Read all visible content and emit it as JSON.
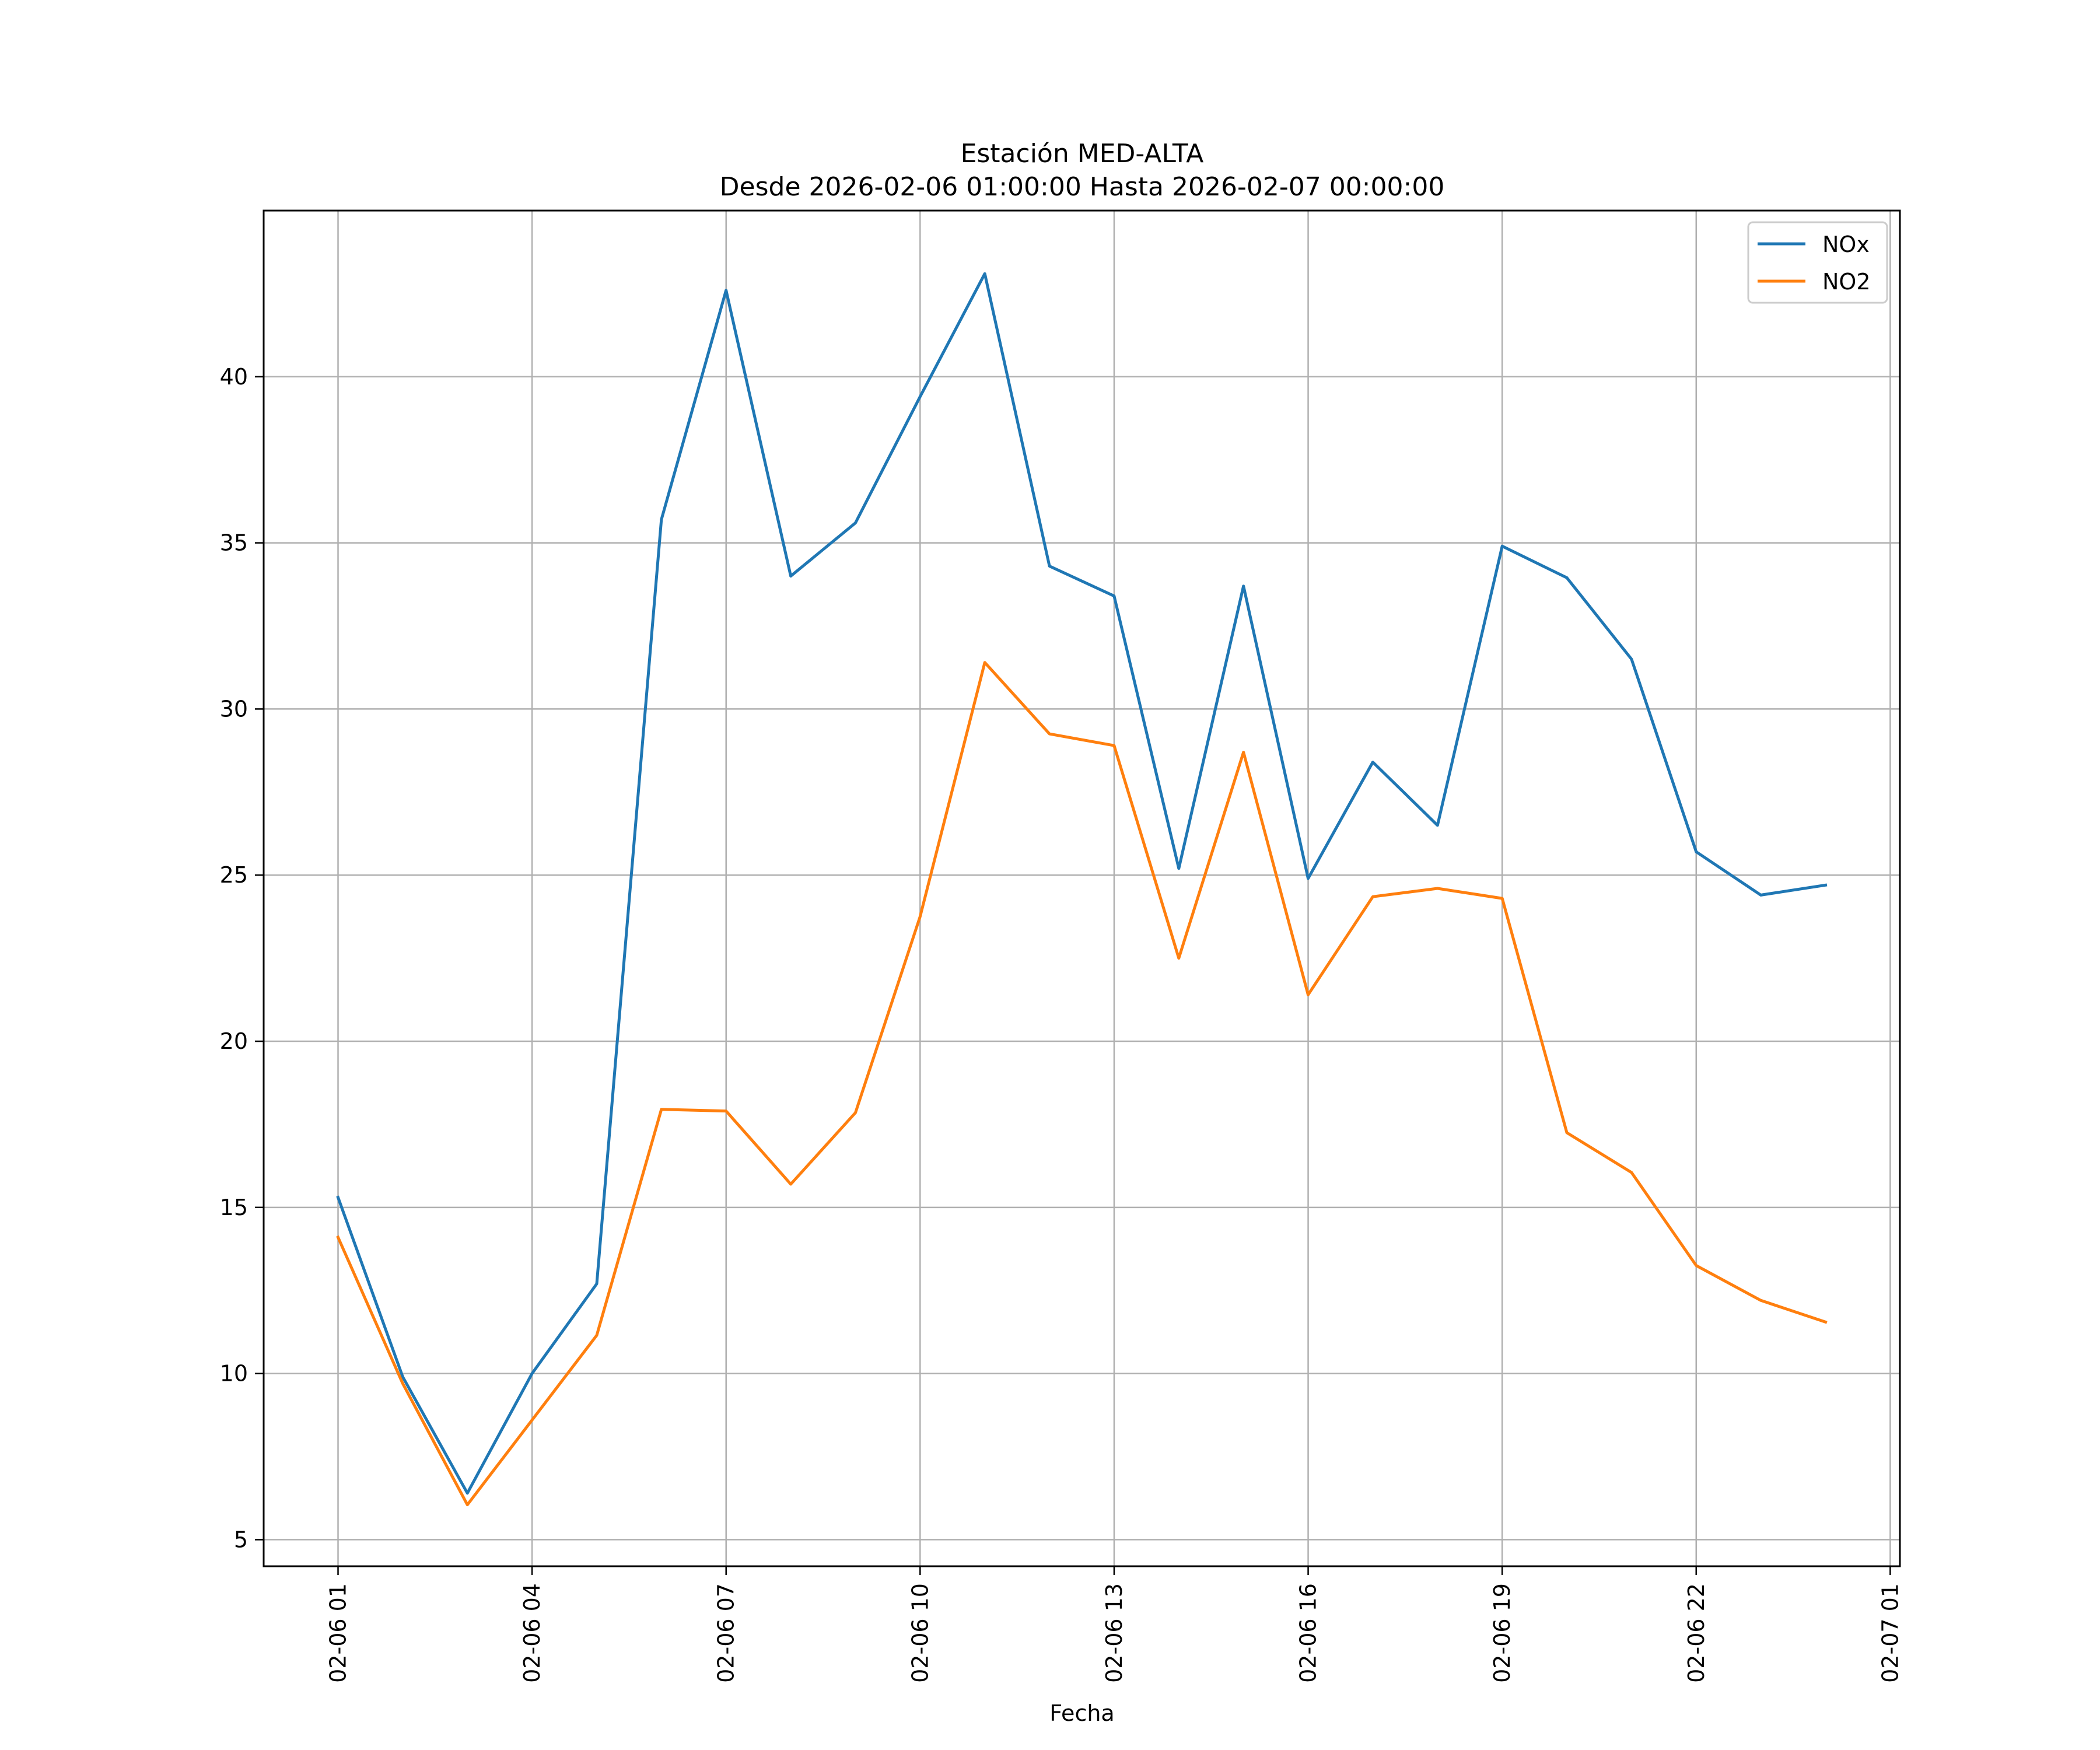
{
  "chart_data": {
    "type": "line",
    "title": "Estación MED-ALTA",
    "subtitle": "Desde 2026-02-06 01:00:00 Hasta 2026-02-07 00:00:00",
    "xlabel": "Fecha",
    "ylabel": "",
    "x": [
      1,
      2,
      3,
      4,
      5,
      6,
      7,
      8,
      9,
      10,
      11,
      12,
      13,
      14,
      15,
      16,
      17,
      18,
      19,
      20,
      21,
      22,
      23,
      24
    ],
    "xlim": [
      -0.15,
      25.15
    ],
    "ylim": [
      4.2,
      45
    ],
    "x_ticks": [
      {
        "value": 1,
        "label": "02-06 01"
      },
      {
        "value": 4,
        "label": "02-06 04"
      },
      {
        "value": 7,
        "label": "02-06 07"
      },
      {
        "value": 10,
        "label": "02-06 10"
      },
      {
        "value": 13,
        "label": "02-06 13"
      },
      {
        "value": 16,
        "label": "02-06 16"
      },
      {
        "value": 19,
        "label": "02-06 19"
      },
      {
        "value": 22,
        "label": "02-06 22"
      },
      {
        "value": 25,
        "label": "02-07 01"
      }
    ],
    "y_ticks": [
      {
        "value": 5,
        "label": "5"
      },
      {
        "value": 10,
        "label": "10"
      },
      {
        "value": 15,
        "label": "15"
      },
      {
        "value": 20,
        "label": "20"
      },
      {
        "value": 25,
        "label": "25"
      },
      {
        "value": 30,
        "label": "30"
      },
      {
        "value": 35,
        "label": "35"
      },
      {
        "value": 40,
        "label": "40"
      }
    ],
    "grid": true,
    "legend_position": "top-right",
    "series": [
      {
        "name": "NOx",
        "color": "#1f77b4",
        "values": [
          15.3,
          9.9,
          6.4,
          10.0,
          12.7,
          35.7,
          42.6,
          34.0,
          35.6,
          39.4,
          43.1,
          34.3,
          33.4,
          25.2,
          33.7,
          24.9,
          28.4,
          26.5,
          34.9,
          33.95,
          31.5,
          25.7,
          24.4,
          24.7
        ]
      },
      {
        "name": "NO2",
        "color": "#ff7f0e",
        "values": [
          14.1,
          9.7,
          6.05,
          8.6,
          11.15,
          17.95,
          17.9,
          15.7,
          17.85,
          23.75,
          31.4,
          29.25,
          28.9,
          22.5,
          28.7,
          21.4,
          24.35,
          24.6,
          24.3,
          17.25,
          16.05,
          13.25,
          12.2,
          11.55
        ]
      }
    ]
  }
}
